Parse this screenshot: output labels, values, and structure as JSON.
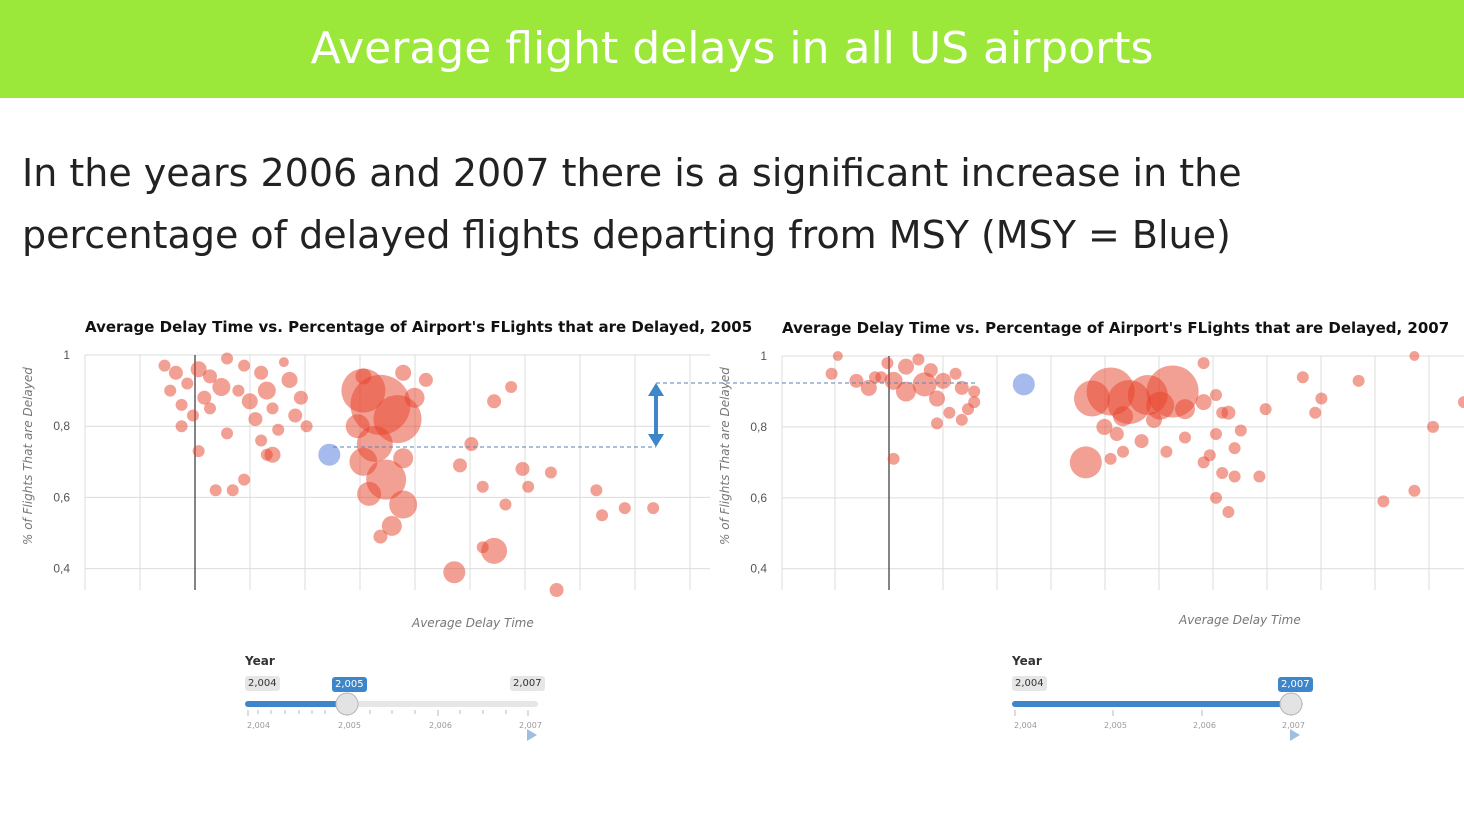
{
  "header": {
    "title": "Average flight delays in all US airports"
  },
  "body": {
    "text": "In the years 2006 and 2007 there is a significant increase in the percentage of delayed flights departing from MSY (MSY = Blue)"
  },
  "colors": {
    "header_bg": "#9be83a",
    "point": "#e8412a",
    "highlight": "#9db3ec",
    "slider": "#3c86c9"
  },
  "chart_data": [
    {
      "type": "scatter",
      "title": "Average Delay Time vs. Percentage of Airport's FLights that are Delayed, 2005",
      "xlabel": "Average Delay Time",
      "ylabel": "% of Flights That are Delayed",
      "ylim": [
        0.34,
        1.0
      ],
      "xlim": [
        0,
        11
      ],
      "yticks": [
        "1",
        "0,8",
        "0,6",
        "0,4"
      ],
      "ytick_values": [
        1.0,
        0.8,
        0.6,
        0.4
      ],
      "grid": true,
      "highlight": {
        "label": "MSY",
        "x": 4.3,
        "y": 0.72,
        "r": 11
      },
      "points": [
        [
          1.4,
          0.97,
          6
        ],
        [
          1.6,
          0.95,
          7
        ],
        [
          1.8,
          0.92,
          6
        ],
        [
          2.0,
          0.96,
          8
        ],
        [
          2.2,
          0.94,
          7
        ],
        [
          2.4,
          0.91,
          9
        ],
        [
          2.1,
          0.88,
          7
        ],
        [
          2.5,
          0.99,
          6
        ],
        [
          2.8,
          0.97,
          6
        ],
        [
          3.1,
          0.95,
          7
        ],
        [
          3.2,
          0.9,
          9
        ],
        [
          2.9,
          0.87,
          8
        ],
        [
          3.3,
          0.85,
          6
        ],
        [
          3.0,
          0.82,
          7
        ],
        [
          3.5,
          0.98,
          5
        ],
        [
          3.6,
          0.93,
          8
        ],
        [
          3.8,
          0.88,
          7
        ],
        [
          3.4,
          0.79,
          6
        ],
        [
          3.1,
          0.76,
          6
        ],
        [
          3.2,
          0.72,
          6
        ],
        [
          3.3,
          0.72,
          8
        ],
        [
          2.5,
          0.78,
          6
        ],
        [
          2.2,
          0.85,
          6
        ],
        [
          1.9,
          0.83,
          6
        ],
        [
          1.5,
          0.9,
          6
        ],
        [
          1.7,
          0.86,
          6
        ],
        [
          2.6,
          0.62,
          6
        ],
        [
          2.8,
          0.65,
          6
        ],
        [
          2.3,
          0.62,
          6
        ],
        [
          2.0,
          0.73,
          6
        ],
        [
          1.7,
          0.8,
          6
        ],
        [
          2.7,
          0.9,
          6
        ],
        [
          3.7,
          0.83,
          7
        ],
        [
          3.9,
          0.8,
          6
        ],
        [
          4.9,
          0.9,
          22
        ],
        [
          5.2,
          0.86,
          30
        ],
        [
          5.5,
          0.82,
          24
        ],
        [
          5.1,
          0.75,
          18
        ],
        [
          5.3,
          0.65,
          20
        ],
        [
          5.0,
          0.61,
          12
        ],
        [
          5.6,
          0.58,
          14
        ],
        [
          5.4,
          0.52,
          10
        ],
        [
          5.2,
          0.49,
          7
        ],
        [
          4.8,
          0.8,
          12
        ],
        [
          4.9,
          0.7,
          14
        ],
        [
          5.8,
          0.88,
          10
        ],
        [
          6.0,
          0.93,
          7
        ],
        [
          5.6,
          0.95,
          8
        ],
        [
          6.8,
          0.75,
          7
        ],
        [
          7.2,
          0.87,
          7
        ],
        [
          7.5,
          0.91,
          6
        ],
        [
          6.6,
          0.69,
          7
        ],
        [
          7.0,
          0.63,
          6
        ],
        [
          7.4,
          0.58,
          6
        ],
        [
          7.7,
          0.68,
          7
        ],
        [
          7.8,
          0.63,
          6
        ],
        [
          7.0,
          0.46,
          6
        ],
        [
          6.5,
          0.39,
          11
        ],
        [
          7.2,
          0.45,
          13
        ],
        [
          8.2,
          0.67,
          6
        ],
        [
          8.3,
          0.34,
          7
        ],
        [
          9.0,
          0.62,
          6
        ],
        [
          9.1,
          0.55,
          6
        ],
        [
          9.5,
          0.57,
          6
        ],
        [
          10.0,
          0.57,
          6
        ],
        [
          4.9,
          0.94,
          8
        ],
        [
          5.6,
          0.71,
          10
        ]
      ]
    },
    {
      "type": "scatter",
      "title": "Average Delay Time vs. Percentage of Airport's FLights that are Delayed, 2007",
      "xlabel": "Average Delay Time",
      "ylabel": "% of Flights That are Delayed",
      "ylim": [
        0.34,
        1.0
      ],
      "xlim": [
        0,
        11
      ],
      "yticks": [
        "1",
        "0,8",
        "0,6",
        "0,4"
      ],
      "ytick_values": [
        1.0,
        0.8,
        0.6,
        0.4
      ],
      "grid": true,
      "highlight": {
        "label": "MSY",
        "x": 3.9,
        "y": 0.92,
        "r": 11
      },
      "points": [
        [
          0.9,
          1.0,
          5
        ],
        [
          0.8,
          0.95,
          6
        ],
        [
          1.2,
          0.93,
          7
        ],
        [
          1.4,
          0.91,
          8
        ],
        [
          1.6,
          0.94,
          6
        ],
        [
          1.8,
          0.93,
          9
        ],
        [
          2.0,
          0.97,
          8
        ],
        [
          2.2,
          0.99,
          6
        ],
        [
          2.4,
          0.96,
          7
        ],
        [
          2.6,
          0.93,
          8
        ],
        [
          2.8,
          0.95,
          6
        ],
        [
          1.7,
          0.98,
          6
        ],
        [
          2.0,
          0.9,
          10
        ],
        [
          2.3,
          0.92,
          12
        ],
        [
          2.5,
          0.88,
          8
        ],
        [
          2.9,
          0.91,
          7
        ],
        [
          3.1,
          0.9,
          6
        ],
        [
          3.0,
          0.85,
          6
        ],
        [
          2.7,
          0.84,
          6
        ],
        [
          2.5,
          0.81,
          6
        ],
        [
          2.9,
          0.82,
          6
        ],
        [
          3.1,
          0.87,
          6
        ],
        [
          1.8,
          0.71,
          6
        ],
        [
          1.5,
          0.94,
          6
        ],
        [
          5.0,
          0.88,
          18
        ],
        [
          5.3,
          0.9,
          24
        ],
        [
          5.6,
          0.87,
          22
        ],
        [
          5.9,
          0.89,
          20
        ],
        [
          6.3,
          0.9,
          26
        ],
        [
          6.1,
          0.86,
          14
        ],
        [
          5.5,
          0.83,
          10
        ],
        [
          5.2,
          0.8,
          8
        ],
        [
          5.4,
          0.78,
          7
        ],
        [
          6.0,
          0.82,
          8
        ],
        [
          6.5,
          0.85,
          10
        ],
        [
          6.8,
          0.87,
          8
        ],
        [
          7.0,
          0.89,
          6
        ],
        [
          7.2,
          0.84,
          7
        ],
        [
          4.9,
          0.7,
          16
        ],
        [
          5.3,
          0.71,
          6
        ],
        [
          5.5,
          0.73,
          6
        ],
        [
          5.8,
          0.76,
          7
        ],
        [
          6.2,
          0.73,
          6
        ],
        [
          6.5,
          0.77,
          6
        ],
        [
          6.8,
          0.98,
          6
        ],
        [
          7.1,
          0.84,
          6
        ],
        [
          7.0,
          0.78,
          6
        ],
        [
          7.4,
          0.79,
          6
        ],
        [
          6.9,
          0.72,
          6
        ],
        [
          7.3,
          0.74,
          6
        ],
        [
          6.8,
          0.7,
          6
        ],
        [
          7.1,
          0.67,
          6
        ],
        [
          7.3,
          0.66,
          6
        ],
        [
          7.7,
          0.66,
          6
        ],
        [
          7.8,
          0.85,
          6
        ],
        [
          7.0,
          0.6,
          6
        ],
        [
          7.2,
          0.56,
          6
        ],
        [
          8.4,
          0.94,
          6
        ],
        [
          8.7,
          0.88,
          6
        ],
        [
          8.6,
          0.84,
          6
        ],
        [
          9.3,
          0.93,
          6
        ],
        [
          9.7,
          0.59,
          6
        ],
        [
          10.2,
          0.62,
          6
        ],
        [
          10.5,
          0.8,
          6
        ],
        [
          10.2,
          1.0,
          5
        ],
        [
          11.0,
          0.87,
          6
        ]
      ]
    }
  ],
  "sliders": [
    {
      "label": "Year",
      "min_label": "2,004",
      "max_label": "2,007",
      "value_label": "2,005",
      "value": 2005,
      "min": 2004,
      "max": 2007,
      "ticks": [
        "2,004",
        "2,005",
        "2,006",
        "2,007"
      ]
    },
    {
      "label": "Year",
      "min_label": "2,004",
      "max_label": "2,007",
      "value_label": "2,007",
      "value": 2007,
      "min": 2004,
      "max": 2007,
      "ticks": [
        "2,004",
        "2,005",
        "2,006",
        "2,007"
      ]
    }
  ]
}
